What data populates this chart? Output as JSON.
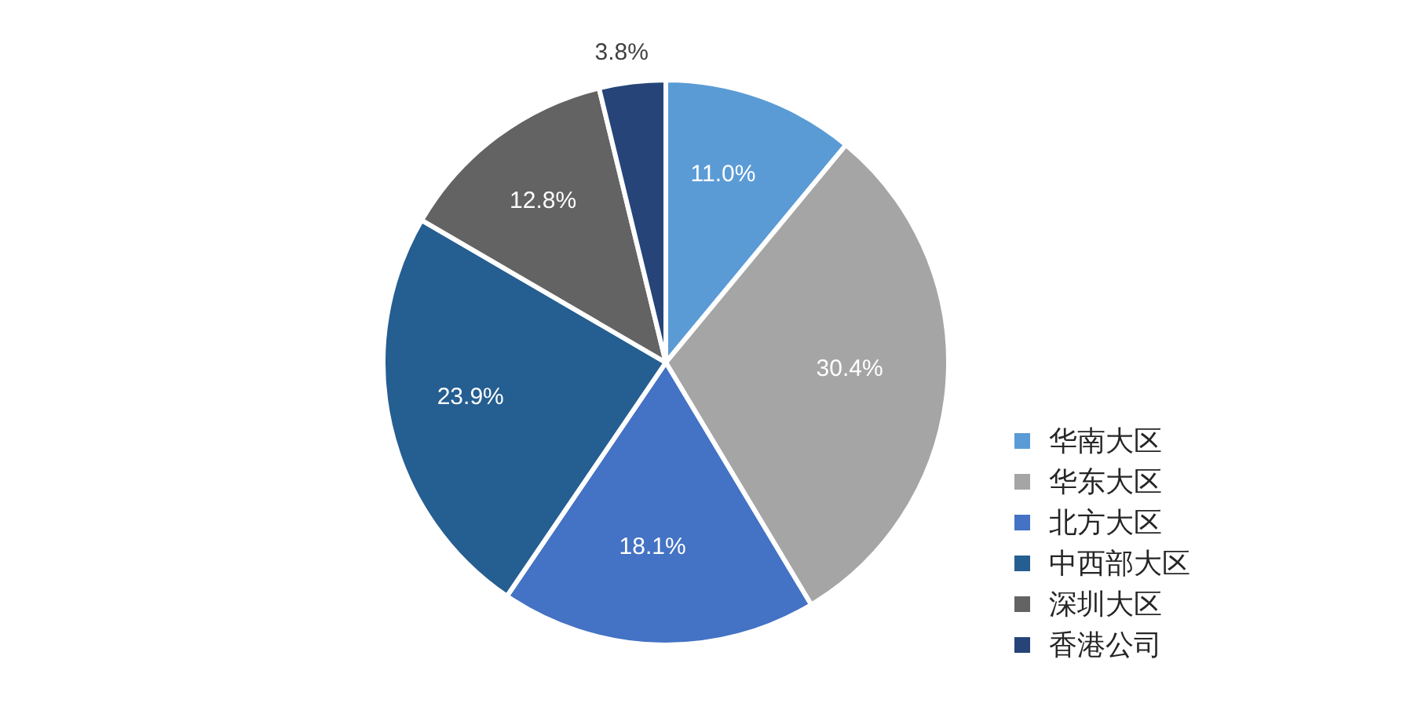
{
  "chart_data": {
    "type": "pie",
    "categories": [
      "华南大区",
      "华东大区",
      "北方大区",
      "中西部大区",
      "深圳大区",
      "香港公司"
    ],
    "values": [
      11.0,
      30.4,
      18.1,
      23.9,
      12.8,
      3.8
    ],
    "value_labels": [
      "11.0%",
      "30.4%",
      "18.1%",
      "23.9%",
      "12.8%",
      "3.8%"
    ],
    "colors": [
      "#5b9bd5",
      "#a5a5a5",
      "#4472c4",
      "#255e91",
      "#636363",
      "#264478"
    ],
    "legend": "right"
  }
}
